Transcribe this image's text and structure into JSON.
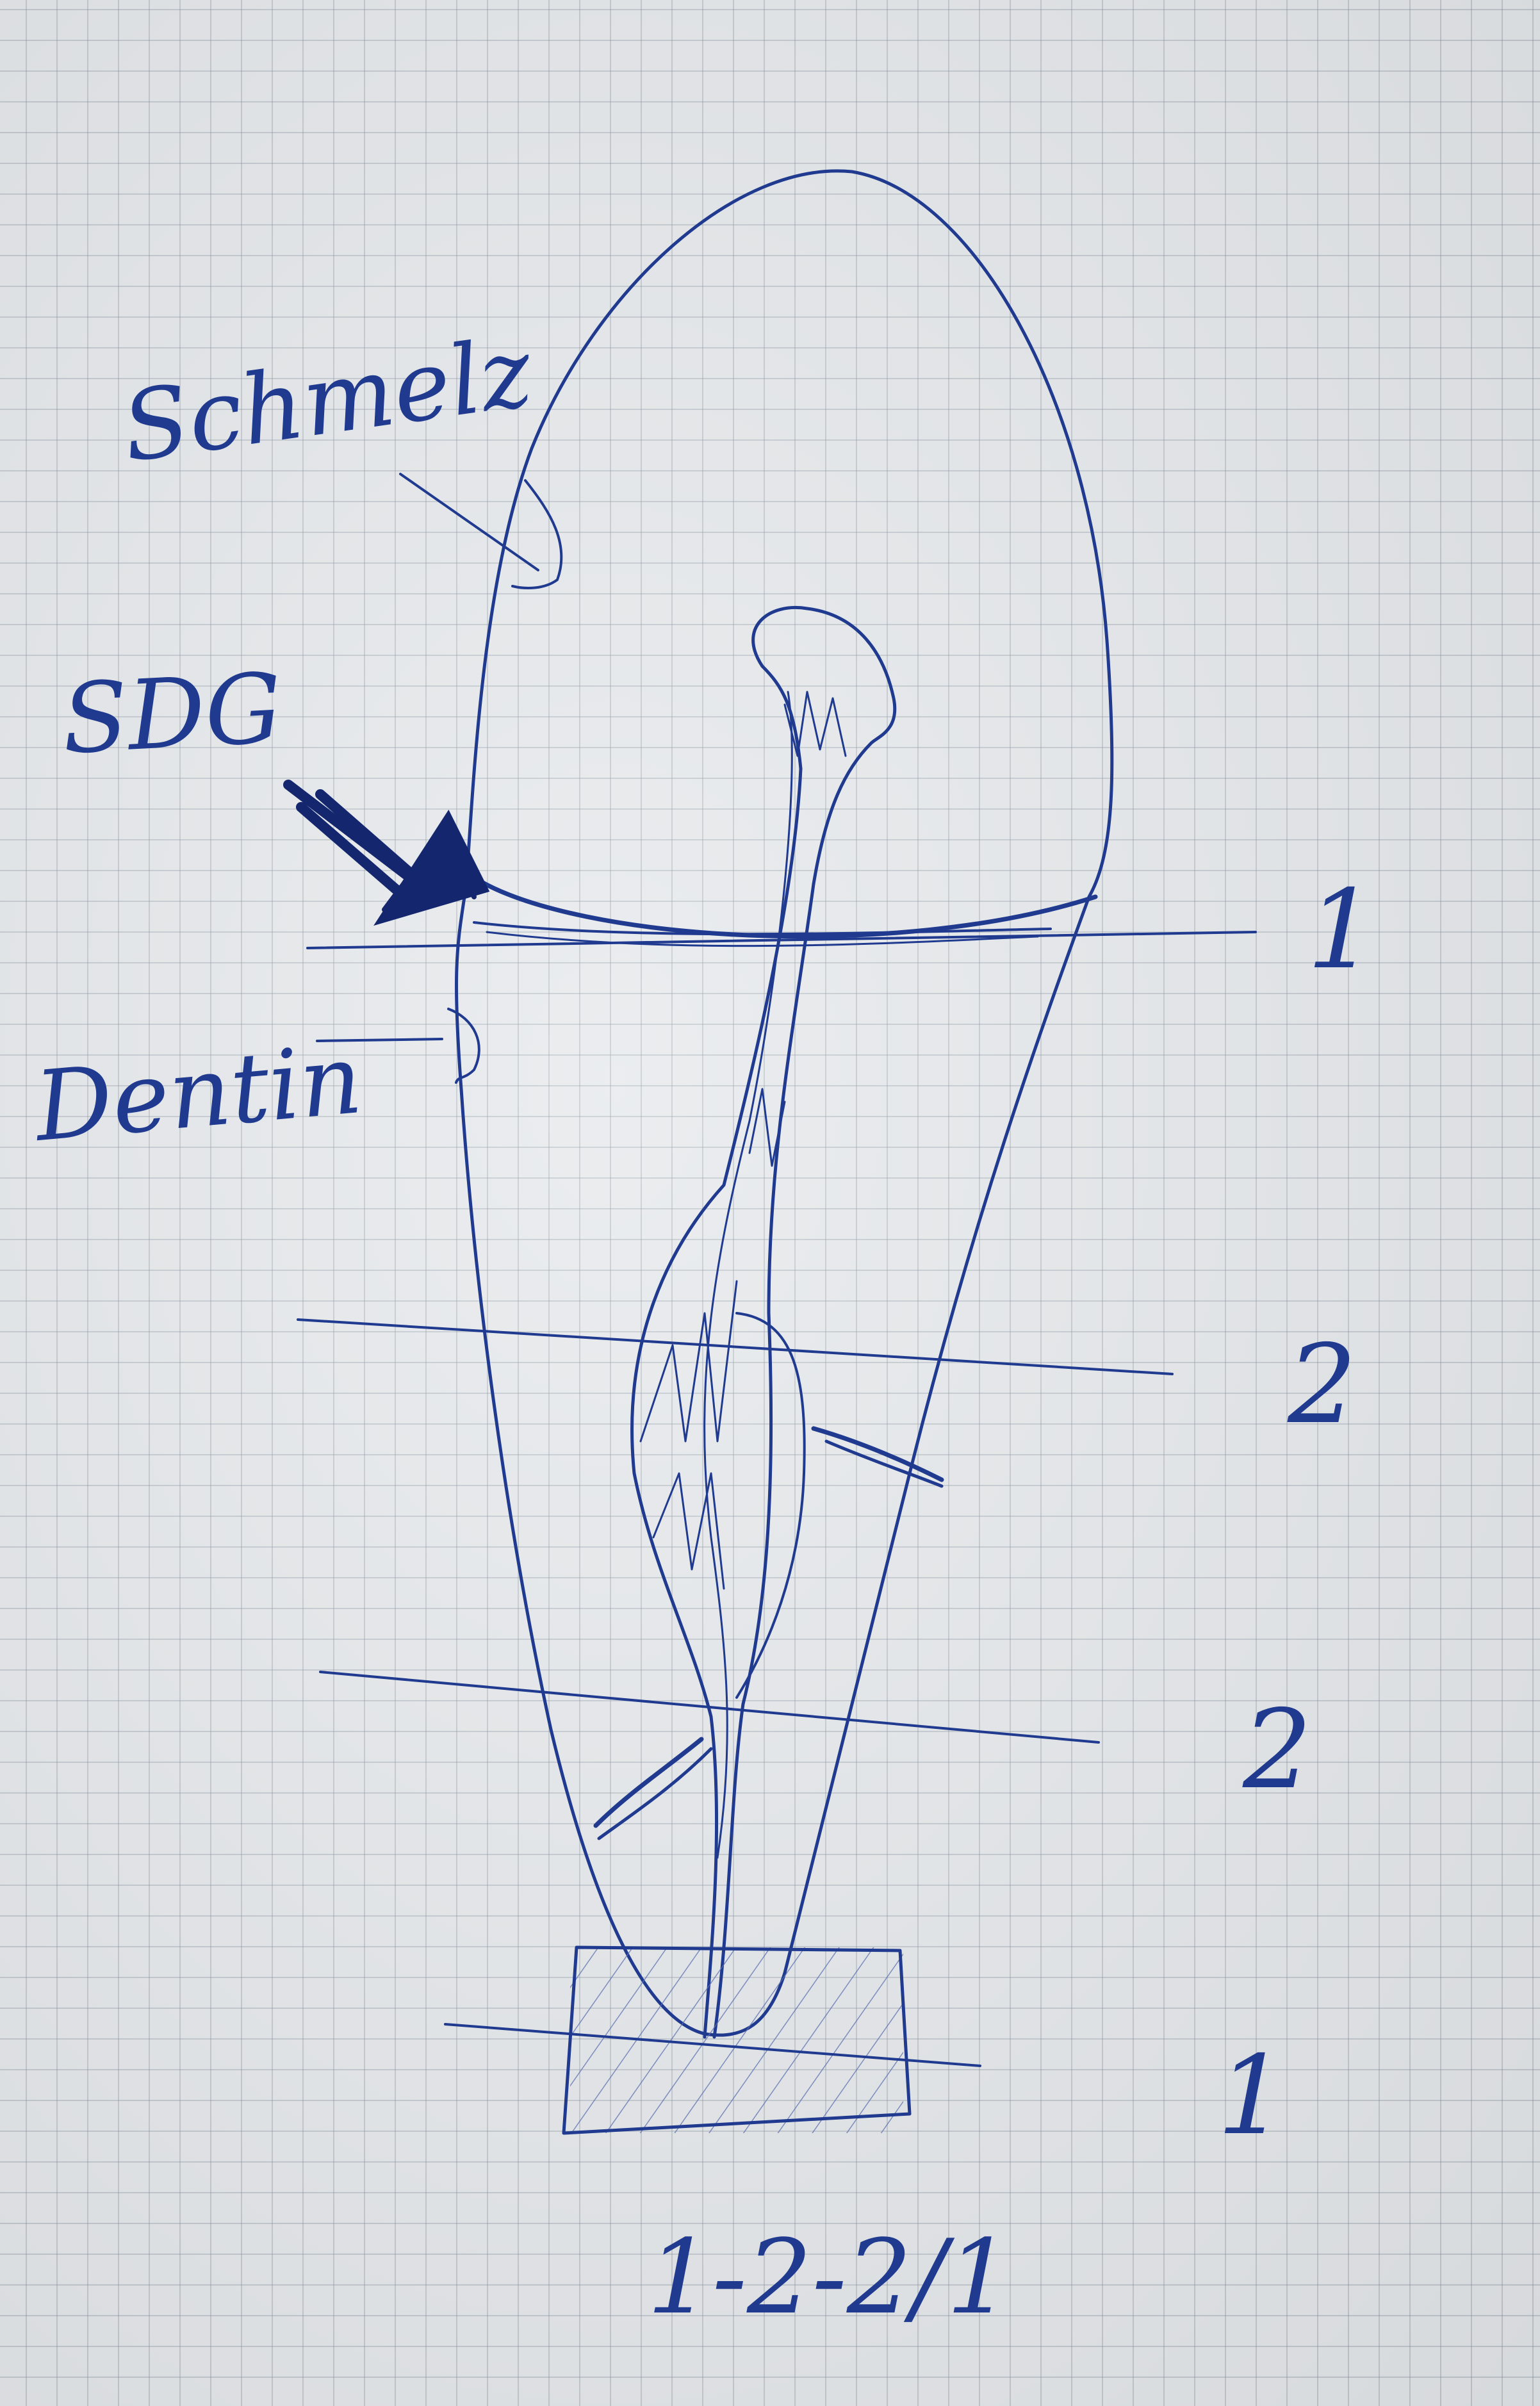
{
  "colors": {
    "ink": "#1f3a8f",
    "ink_dark": "#14266e",
    "paper": "#e4e7ea",
    "grid": "#8a98a8"
  },
  "labels": {
    "schmelz": "Schmelz",
    "sdg": "SDG",
    "dentin": "Dentin"
  },
  "levels": [
    "1",
    "2",
    "2",
    "1"
  ],
  "formula": "1-2-2/1"
}
